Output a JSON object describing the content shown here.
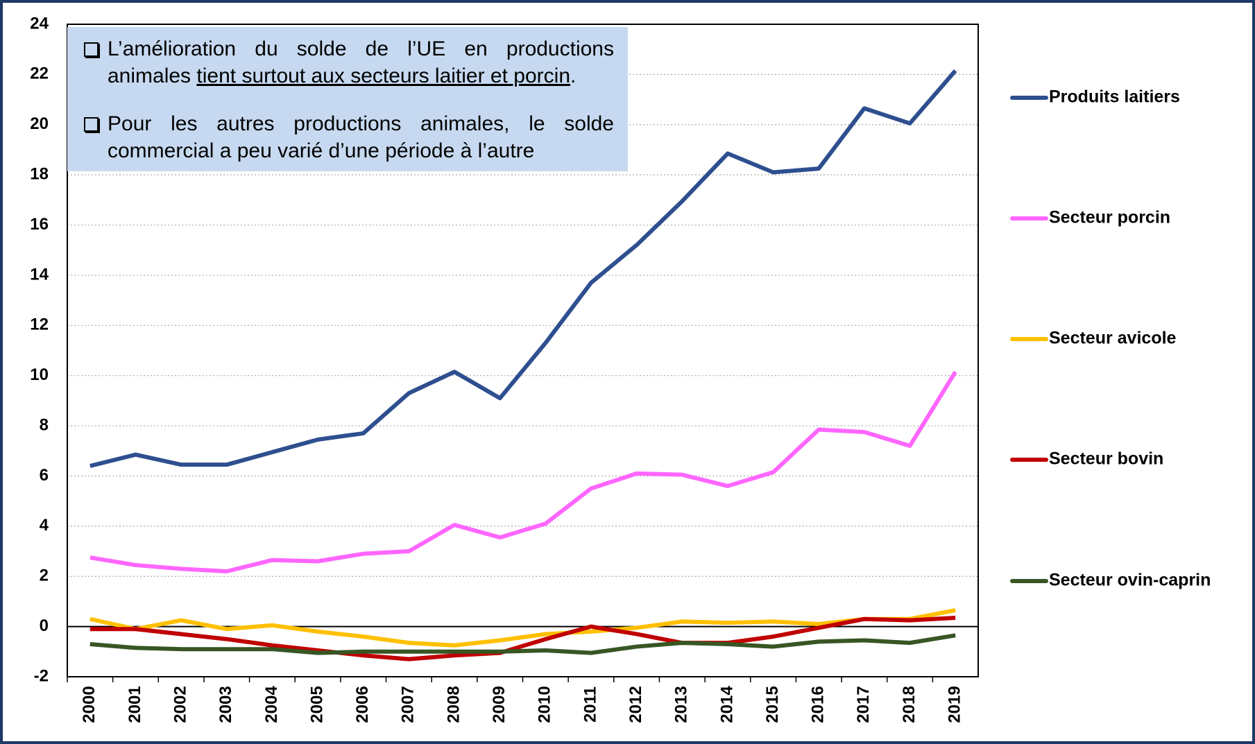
{
  "chart_data": {
    "type": "line",
    "categories": [
      "2000",
      "2001",
      "2002",
      "2003",
      "2004",
      "2005",
      "2006",
      "2007",
      "2008",
      "2009",
      "2010",
      "2011",
      "2012",
      "2013",
      "2014",
      "2015",
      "2016",
      "2017",
      "2018",
      "2019"
    ],
    "series": [
      {
        "name": "Produits laitiers",
        "color": "#2e4f8f",
        "values": [
          6.4,
          6.85,
          6.45,
          6.45,
          6.95,
          7.45,
          7.7,
          9.3,
          10.15,
          9.1,
          11.3,
          13.7,
          15.2,
          16.95,
          18.85,
          18.1,
          18.25,
          20.65,
          20.05,
          22.15
        ]
      },
      {
        "name": "Secteur porcin",
        "color": "#ff66ff",
        "values": [
          2.75,
          2.45,
          2.3,
          2.2,
          2.65,
          2.6,
          2.9,
          3.0,
          4.05,
          3.55,
          4.1,
          5.5,
          6.1,
          6.05,
          5.6,
          6.15,
          7.85,
          7.75,
          7.2,
          10.15
        ]
      },
      {
        "name": "Secteur avicole",
        "color": "#ffc000",
        "values": [
          0.3,
          -0.1,
          0.25,
          -0.1,
          0.05,
          -0.2,
          -0.4,
          -0.65,
          -0.75,
          -0.55,
          -0.3,
          -0.2,
          -0.05,
          0.2,
          0.15,
          0.2,
          0.1,
          0.3,
          0.3,
          0.65
        ]
      },
      {
        "name": "Secteur bovin",
        "color": "#c00000",
        "values": [
          -0.1,
          -0.1,
          -0.3,
          -0.5,
          -0.75,
          -0.95,
          -1.15,
          -1.3,
          -1.15,
          -1.05,
          -0.5,
          0.0,
          -0.3,
          -0.65,
          -0.65,
          -0.4,
          -0.05,
          0.3,
          0.25,
          0.35
        ]
      },
      {
        "name": "Secteur ovin-caprin",
        "color": "#375623",
        "values": [
          -0.7,
          -0.85,
          -0.9,
          -0.9,
          -0.9,
          -1.05,
          -1.0,
          -1.0,
          -1.0,
          -1.0,
          -0.95,
          -1.05,
          -0.8,
          -0.65,
          -0.7,
          -0.8,
          -0.6,
          -0.55,
          -0.65,
          -0.35
        ]
      }
    ],
    "ylim": [
      -2,
      24
    ],
    "yticks": [
      -2,
      0,
      2,
      4,
      6,
      8,
      10,
      12,
      14,
      16,
      18,
      20,
      22,
      24
    ],
    "grid": true,
    "legend": "right",
    "annotation": {
      "bullets": [
        [
          "L’amélioration du solde de l’UE en productions animales ",
          "tient surtout aux secteurs laitier et porcin",
          "."
        ],
        [
          "Pour les autres productions animales, le solde commercial a peu varié d’une période à l’autre"
        ]
      ]
    }
  }
}
